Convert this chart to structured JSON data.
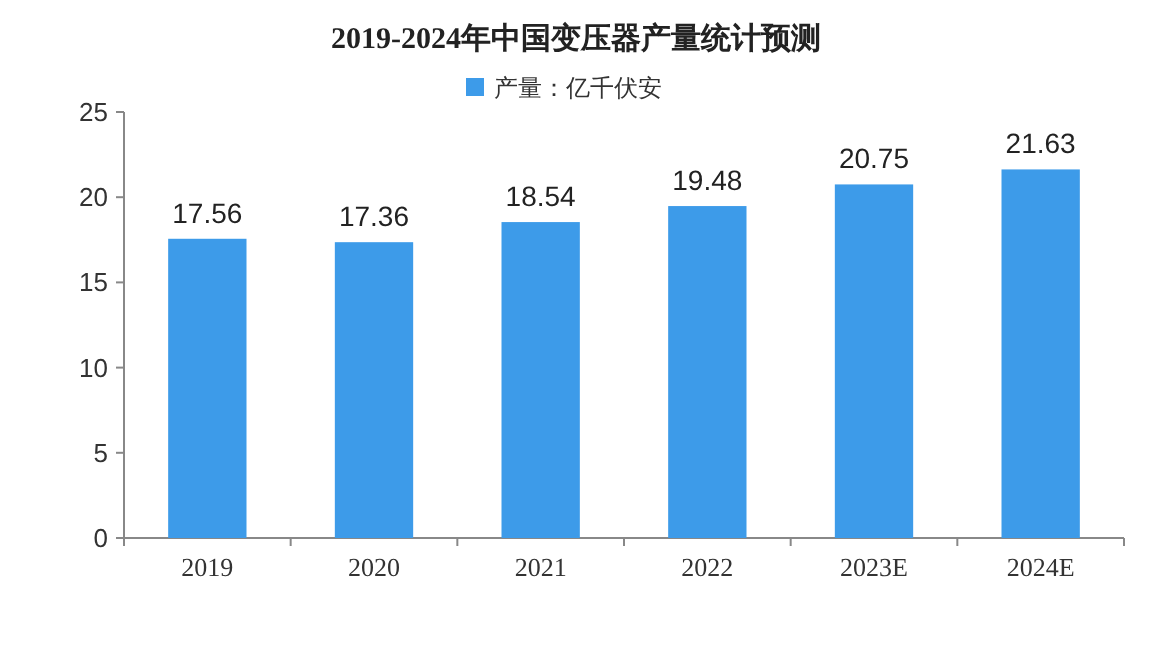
{
  "chart_data": {
    "type": "bar",
    "title": "2019-2024年中国变压器产量统计预测",
    "categories": [
      "2019",
      "2020",
      "2021",
      "2022",
      "2023E",
      "2024E"
    ],
    "series": [
      {
        "name": "产量：亿千伏安",
        "color": "#3d9be9",
        "values": [
          17.56,
          17.36,
          18.54,
          19.48,
          20.75,
          21.63
        ]
      }
    ],
    "ylim": [
      0,
      25
    ],
    "yticks": [
      0,
      5,
      10,
      15,
      20,
      25
    ],
    "data_labels": true,
    "legend": "top",
    "grid": false
  }
}
